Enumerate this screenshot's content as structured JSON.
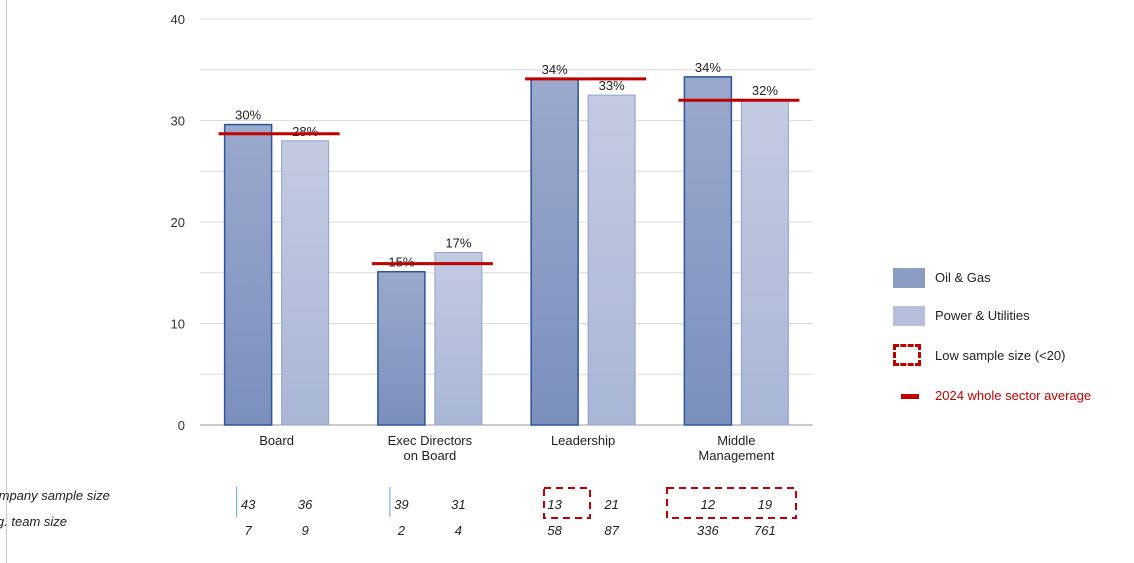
{
  "chart_data": {
    "type": "bar",
    "categories": [
      [
        "Board"
      ],
      [
        "Exec Directors",
        "on Board"
      ],
      [
        "Leadership"
      ],
      [
        "Middle",
        "Management"
      ]
    ],
    "series": [
      {
        "name": "Oil & Gas",
        "values": [
          29.6,
          15.1,
          34.1,
          34.3
        ],
        "labels": [
          "30%",
          "15%",
          "34%",
          "34%"
        ],
        "color": "#8c9dc5"
      },
      {
        "name": "Power & Utilities",
        "values": [
          28.0,
          17.0,
          32.5,
          32.0
        ],
        "labels": [
          "28%",
          "17%",
          "33%",
          "32%"
        ],
        "color": "#b6c0dc"
      }
    ],
    "sector_average": {
      "name": "2024 whole sector average",
      "values": [
        28.7,
        15.9,
        34.1,
        32.0
      ],
      "color": "#c00000"
    },
    "y_ticks": [
      "0",
      "10",
      "20",
      "30",
      "40"
    ],
    "ylim": [
      0,
      40
    ],
    "grid": true,
    "legend_position": "right",
    "title": "",
    "xlabel": "",
    "ylabel": ""
  },
  "table": {
    "row_labels": [
      "Company sample size",
      "Avg. team size"
    ],
    "company_sample_size": [
      [
        "43",
        "36"
      ],
      [
        "39",
        "31"
      ],
      [
        "13",
        "21"
      ],
      [
        "12",
        "19"
      ]
    ],
    "avg_team_size": [
      [
        "7",
        "9"
      ],
      [
        "2",
        "4"
      ],
      [
        "58",
        "87"
      ],
      [
        "336",
        "761"
      ]
    ]
  },
  "legend": {
    "oil_gas": "Oil & Gas",
    "power_utilities": "Power & Utilities",
    "low_sample": "Low sample size (<20)",
    "sector_avg": "2024 whole sector average"
  }
}
